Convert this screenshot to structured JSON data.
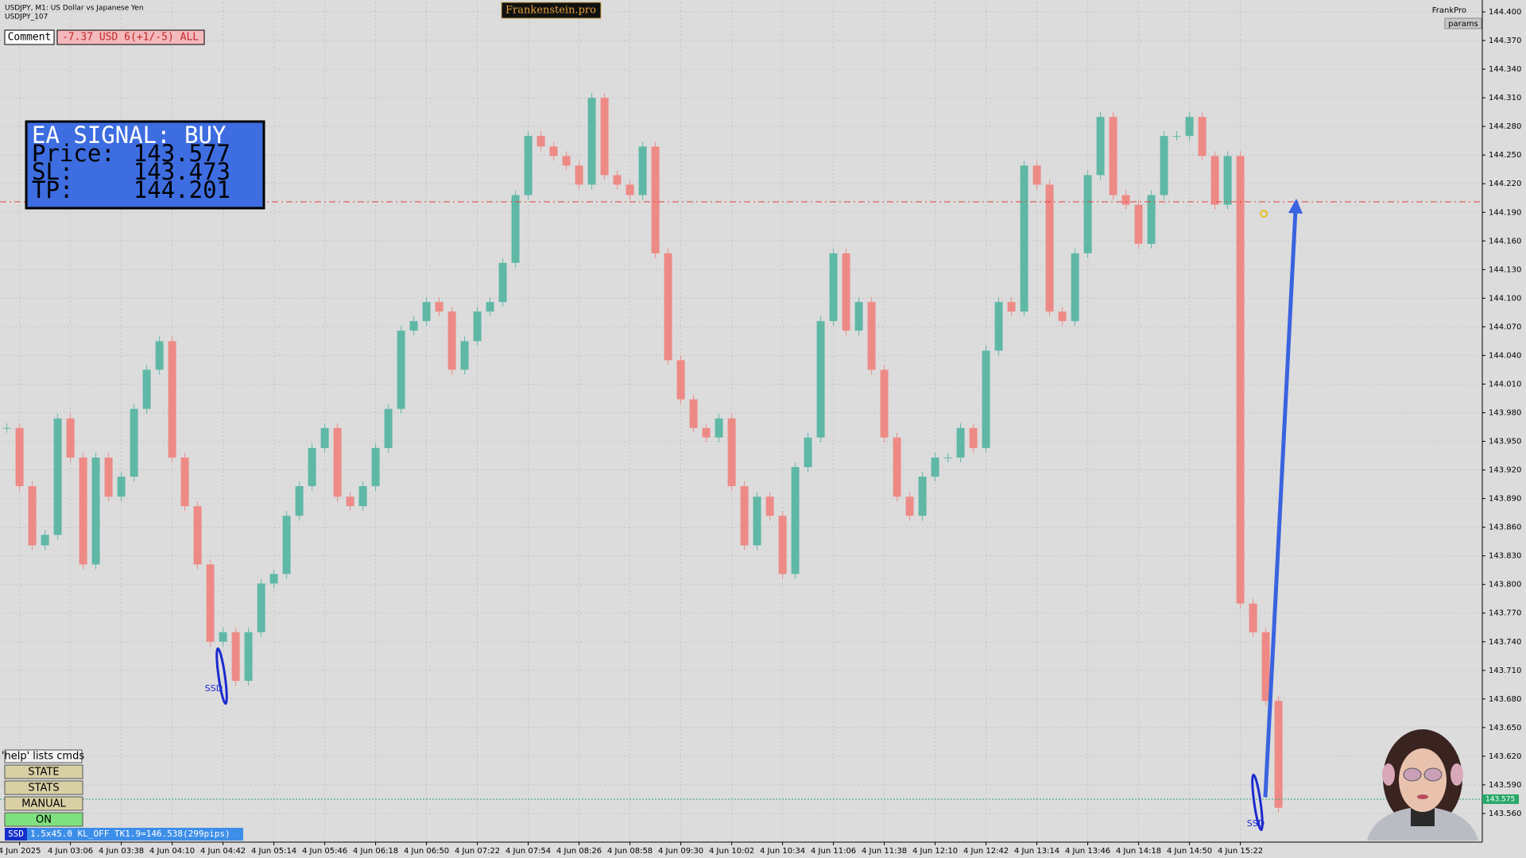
{
  "window": {
    "symbol_line": "USDJPY, M1:  US Dollar vs Japanese Yen",
    "account": "USDJPY_107",
    "brand": "Frankenstein.pro",
    "top_right": "FrankPro",
    "params": "params"
  },
  "comment": {
    "label": "Comment",
    "text": "-7.37 USD 6(+1/-5) ALL"
  },
  "signal": {
    "title": "EA SIGNAL: BUY",
    "rows": [
      {
        "label": "Price:",
        "value": 143.577
      },
      {
        "label": "SL:",
        "value": 143.473
      },
      {
        "label": "TP:",
        "value": 144.201
      }
    ]
  },
  "buttons": [
    "'help' lists cmds",
    "STATE",
    "STATS",
    "MANUAL",
    "ON"
  ],
  "status": {
    "tag": "SSD",
    "text": "1.5x45.0 KL_OFF TK1.9=146.538(299pips)"
  },
  "markers": [
    "SSD",
    "SSD"
  ],
  "chart_data": {
    "type": "candlestick",
    "colors": {
      "up": "#5fb8a6",
      "down": "#ee8a86"
    },
    "values": [
      143.964,
      143.903,
      143.841,
      143.852,
      143.974,
      143.933,
      143.821,
      143.933,
      143.892,
      143.913,
      143.984,
      144.025,
      144.055,
      143.933,
      143.882,
      143.821,
      143.74,
      143.75,
      143.699,
      143.75,
      143.801,
      143.811,
      143.872,
      143.903,
      143.943,
      143.964,
      143.892,
      143.882,
      143.903,
      143.943,
      143.984,
      144.066,
      144.076,
      144.096,
      144.086,
      144.025,
      144.055,
      144.086,
      144.096,
      144.137,
      144.208,
      144.27,
      144.259,
      144.249,
      144.239,
      144.219,
      144.31,
      144.229,
      144.219,
      144.208,
      144.259,
      144.147,
      144.035,
      143.994,
      143.964,
      143.954,
      143.974,
      143.903,
      143.841,
      143.892,
      143.872,
      143.811,
      143.923,
      143.954,
      144.076,
      144.147,
      144.066,
      144.096,
      144.025,
      143.954,
      143.892,
      143.872,
      143.913,
      143.933,
      143.933,
      143.964,
      143.943,
      144.045,
      144.096,
      144.086,
      144.239,
      144.219,
      144.086,
      144.076,
      144.147,
      144.229,
      144.29,
      144.208,
      144.198,
      144.157,
      144.208,
      144.27,
      144.27,
      144.29,
      144.249,
      144.198,
      144.249,
      143.78,
      143.75,
      143.678,
      143.566
    ],
    "ylim": [
      143.53,
      144.41
    ],
    "yticks": [
      {
        "value": 143.56,
        "label": "143.560"
      },
      {
        "value": 143.59,
        "label": "143.590"
      },
      {
        "value": 143.62,
        "label": "143.620"
      },
      {
        "value": 143.65,
        "label": "143.650"
      },
      {
        "value": 143.68,
        "label": "143.680"
      },
      {
        "value": 143.71,
        "label": "143.710"
      },
      {
        "value": 143.74,
        "label": "143.740"
      },
      {
        "value": 143.77,
        "label": "143.770"
      },
      {
        "value": 143.8,
        "label": "143.800"
      },
      {
        "value": 143.83,
        "label": "143.830"
      },
      {
        "value": 143.86,
        "label": "143.860"
      },
      {
        "value": 143.89,
        "label": "143.890"
      },
      {
        "value": 143.92,
        "label": "143.920"
      },
      {
        "value": 143.95,
        "label": "143.950"
      },
      {
        "value": 143.98,
        "label": "143.980"
      },
      {
        "value": 144.01,
        "label": "144.010"
      },
      {
        "value": 144.04,
        "label": "144.040"
      },
      {
        "value": 144.07,
        "label": "144.070"
      },
      {
        "value": 144.1,
        "label": "144.100"
      },
      {
        "value": 144.13,
        "label": "144.130"
      },
      {
        "value": 144.16,
        "label": "144.160"
      },
      {
        "value": 144.19,
        "label": "144.190"
      },
      {
        "value": 144.22,
        "label": "144.220"
      },
      {
        "value": 144.25,
        "label": "144.250"
      },
      {
        "value": 144.28,
        "label": "144.280"
      },
      {
        "value": 144.31,
        "label": "144.310"
      },
      {
        "value": 144.34,
        "label": "144.340"
      },
      {
        "value": 144.37,
        "label": "144.370"
      },
      {
        "value": 144.4,
        "label": "144.400"
      }
    ],
    "x_labels": [
      "4 Jun 2025",
      "4 Jun 03:06",
      "4 Jun 03:38",
      "4 Jun 04:10",
      "4 Jun 04:42",
      "4 Jun 05:14",
      "4 Jun 05:46",
      "4 Jun 06:18",
      "4 Jun 06:50",
      "4 Jun 07:22",
      "4 Jun 07:54",
      "4 Jun 08:26",
      "4 Jun 08:58",
      "4 Jun 09:30",
      "4 Jun 10:02",
      "4 Jun 10:34",
      "4 Jun 11:06",
      "4 Jun 11:38",
      "4 Jun 12:10",
      "4 Jun 12:42",
      "4 Jun 13:14",
      "4 Jun 13:46",
      "4 Jun 14:18",
      "4 Jun 14:50",
      "4 Jun 15:22"
    ],
    "bid": 143.575,
    "grid": true
  }
}
